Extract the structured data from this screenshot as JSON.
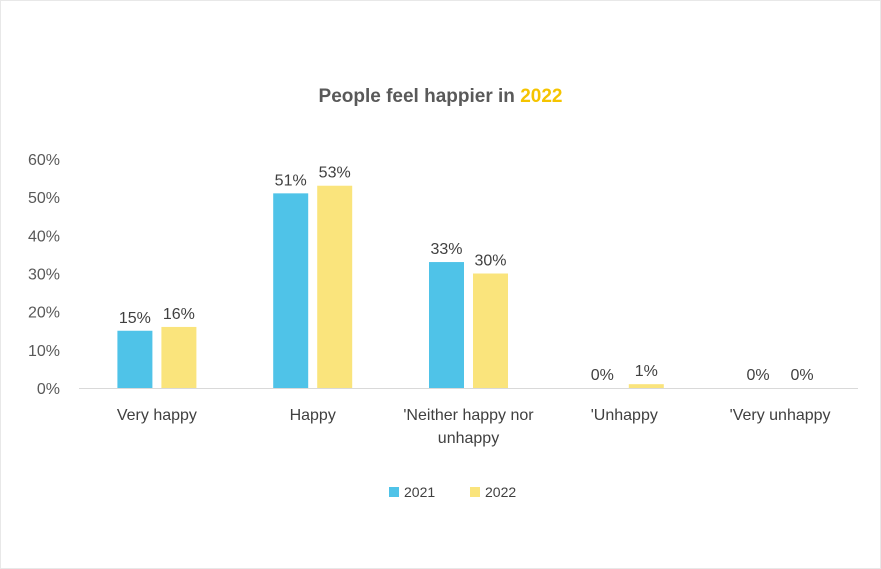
{
  "title": {
    "prefix": "People feel happier in",
    "highlight": "2022"
  },
  "colors": {
    "series_2021": "#4fc3e8",
    "series_2022": "#fae47c",
    "highlight": "#f5c400",
    "axis": "#d9d9d9",
    "text": "#404040"
  },
  "chart_data": {
    "type": "bar",
    "title": "People feel happier in 2022",
    "xlabel": "",
    "ylabel": "",
    "ylim": [
      0,
      60
    ],
    "yticks": [
      "0%",
      "10%",
      "20%",
      "30%",
      "40%",
      "50%",
      "60%"
    ],
    "grid": false,
    "legend": "bottom",
    "categories": [
      "Very happy",
      "Happy",
      "'Neither happy nor unhappy",
      "'Unhappy",
      "'Very unhappy"
    ],
    "category_lines": [
      [
        "Very happy"
      ],
      [
        "Happy"
      ],
      [
        "'Neither happy nor",
        "unhappy"
      ],
      [
        "'Unhappy"
      ],
      [
        "'Very unhappy"
      ]
    ],
    "series": [
      {
        "name": "2021",
        "values": [
          15,
          51,
          33,
          0,
          0
        ],
        "labels": [
          "15%",
          "51%",
          "33%",
          "0%",
          "0%"
        ]
      },
      {
        "name": "2022",
        "values": [
          16,
          53,
          30,
          1,
          0
        ],
        "labels": [
          "16%",
          "53%",
          "30%",
          "1%",
          "0%"
        ]
      }
    ]
  }
}
